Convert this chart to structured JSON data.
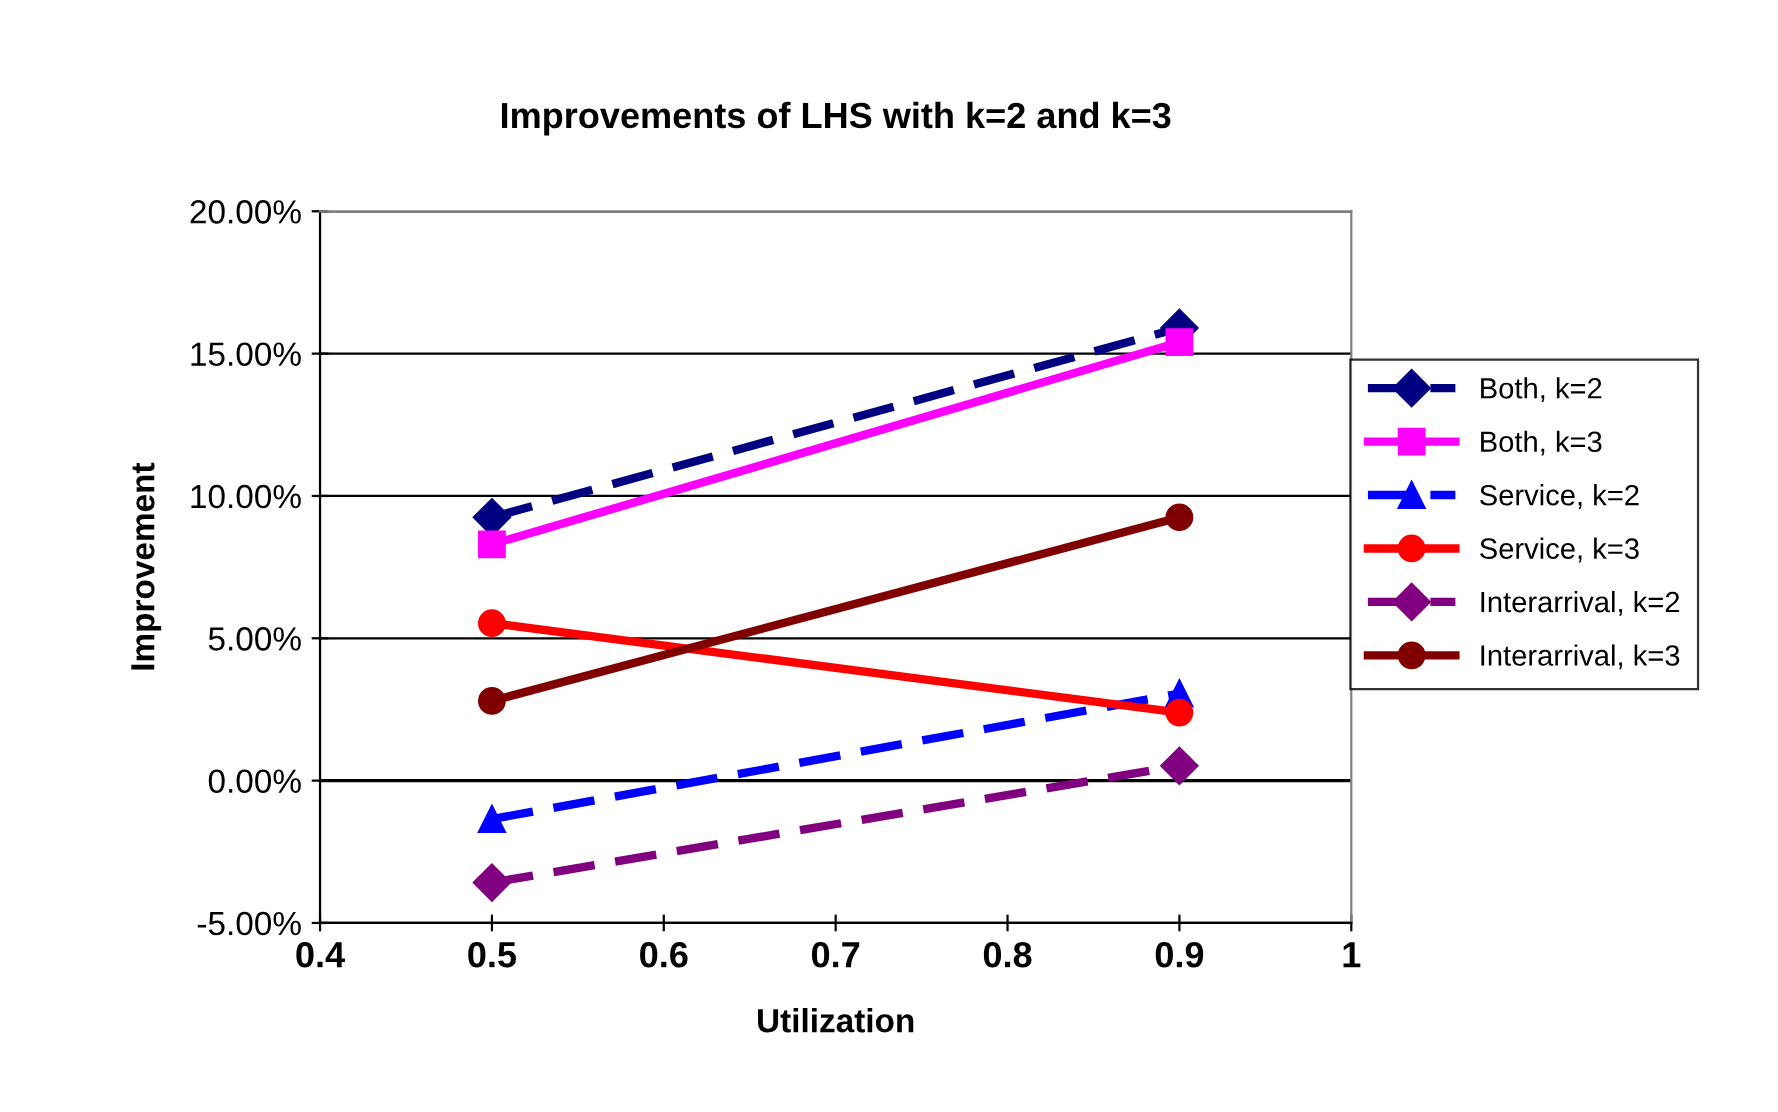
{
  "chart_data": {
    "type": "line",
    "title": "Improvements of LHS with k=2 and k=3",
    "xlabel": "Utilization",
    "ylabel": "Improvement",
    "x": [
      0.5,
      0.9
    ],
    "series": [
      {
        "name": "Both, k=2",
        "color": "#000080",
        "values": [
          9.25,
          15.9
        ],
        "marker": "diamond",
        "line_style": "dashed"
      },
      {
        "name": "Both, k=3",
        "color": "#ff00ff",
        "values": [
          8.3,
          15.4
        ],
        "marker": "square",
        "line_style": "solid"
      },
      {
        "name": "Service, k=2",
        "color": "#0000ff",
        "values": [
          -1.35,
          3.06
        ],
        "marker": "triangle",
        "line_style": "dashed"
      },
      {
        "name": "Service, k=3",
        "color": "#ff0000",
        "values": [
          5.53,
          2.39
        ],
        "marker": "circle",
        "line_style": "solid"
      },
      {
        "name": "Interarrival, k=2",
        "color": "#800080",
        "values": [
          -3.58,
          0.52
        ],
        "marker": "diamond",
        "line_style": "dashed"
      },
      {
        "name": "Interarrival, k=3",
        "color": "#800000",
        "values": [
          2.8,
          9.25
        ],
        "marker": "circle",
        "line_style": "solid"
      }
    ],
    "xlim": [
      0.4,
      1
    ],
    "xticks": [
      0.4,
      0.5,
      0.6,
      0.7,
      0.8,
      0.9,
      1
    ],
    "ylim": [
      -5,
      20
    ],
    "yticks": [
      {
        "value": -5,
        "label": "-5.00%"
      },
      {
        "value": 0,
        "label": "0.00%"
      },
      {
        "value": 5,
        "label": "5.00%"
      },
      {
        "value": 10,
        "label": "10.00%"
      },
      {
        "value": 15,
        "label": "15.00%"
      },
      {
        "value": 20,
        "label": "20.00%"
      }
    ],
    "grid": "y",
    "legend": "right"
  }
}
